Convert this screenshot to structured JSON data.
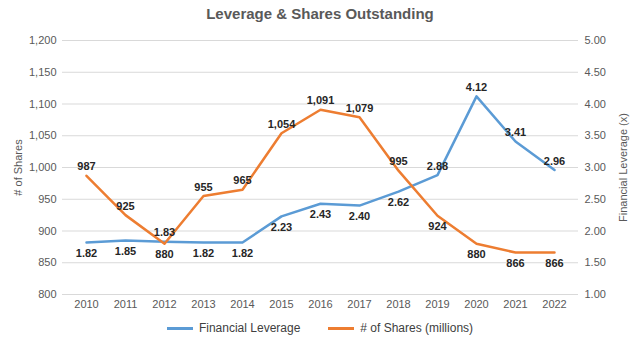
{
  "chart_data": {
    "type": "line",
    "title": "Leverage & Shares Outstanding",
    "categories": [
      "2010",
      "2011",
      "2012",
      "2013",
      "2014",
      "2015",
      "2016",
      "2017",
      "2018",
      "2019",
      "2020",
      "2021",
      "2022"
    ],
    "series": [
      {
        "name": "Financial Leverage",
        "color": "#5b9bd5",
        "axis": "y2",
        "values": [
          1.82,
          1.85,
          1.83,
          1.82,
          1.82,
          2.23,
          2.43,
          2.4,
          2.62,
          2.88,
          4.12,
          3.41,
          2.96
        ],
        "value_labels": [
          "1.82",
          "1.85",
          "1.83",
          "1.82",
          "1.82",
          "2.23",
          "2.43",
          "2.40",
          "2.62",
          "2.88",
          "4.12",
          "3.41",
          "2.96"
        ]
      },
      {
        "name": "# of Shares (millions)",
        "color": "#ed7d31",
        "values": [
          987,
          925,
          880,
          955,
          965,
          1054,
          1091,
          1079,
          995,
          924,
          880,
          866,
          866
        ],
        "value_labels": [
          "987",
          "925",
          "880",
          "955",
          "965",
          "1,054",
          "1,091",
          "1,079",
          "995",
          "924",
          "880",
          "866",
          "866"
        ]
      }
    ],
    "y_label": "# of Shares",
    "y2_label": "Financial Leverage (x)",
    "ylim": [
      800,
      1200
    ],
    "yticks": [
      800,
      850,
      900,
      950,
      {
        "value": 1000,
        "label": "1,000"
      },
      {
        "value": 1050,
        "label": "1,050"
      },
      {
        "value": 1100,
        "label": "1,100"
      },
      {
        "value": 1150,
        "label": "1,150"
      },
      {
        "value": 1200,
        "label": "1,200"
      }
    ],
    "y2lim": [
      1,
      5
    ],
    "y2ticks": [
      {
        "value": 1,
        "label": "1.00"
      },
      {
        "value": 1.5,
        "label": "1.50"
      },
      {
        "value": 2,
        "label": "2.00"
      },
      {
        "value": 2.5,
        "label": "2.50"
      },
      {
        "value": 3,
        "label": "3.00"
      },
      {
        "value": 3.5,
        "label": "3.50"
      },
      {
        "value": 4,
        "label": "4.00"
      },
      {
        "value": 4.5,
        "label": "4.50"
      },
      {
        "value": 5,
        "label": "5.00"
      }
    ],
    "grid": true,
    "data_labels": true,
    "legend": "bottom"
  }
}
